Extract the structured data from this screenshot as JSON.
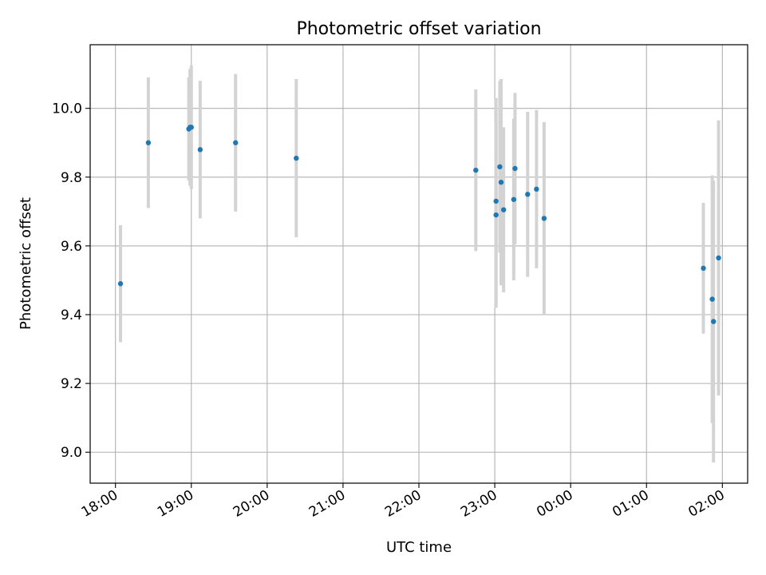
{
  "chart_data": {
    "type": "scatter",
    "title": "Photometric offset variation",
    "xlabel": "UTC time",
    "ylabel": "Photometric offset",
    "x_ticks": [
      "18:00",
      "19:00",
      "20:00",
      "21:00",
      "22:00",
      "23:00",
      "00:00",
      "01:00",
      "02:00"
    ],
    "y_ticks": [
      "9.0",
      "9.2",
      "9.4",
      "9.6",
      "9.8",
      "10.0"
    ],
    "xlim": [
      "17:40",
      "02:20"
    ],
    "ylim": [
      8.91,
      10.185
    ],
    "grid": true,
    "colors": {
      "point": "#1f77b4",
      "errorbar": "#d3d3d3",
      "grid": "#b0b0b0"
    },
    "points": [
      {
        "x": "18:04",
        "y": 9.49,
        "err": 0.17
      },
      {
        "x": "18:26",
        "y": 9.9,
        "err": 0.19
      },
      {
        "x": "18:58",
        "y": 9.94,
        "err": 0.15
      },
      {
        "x": "18:59",
        "y": 9.945,
        "err": 0.17
      },
      {
        "x": "19:00",
        "y": 9.945,
        "err": 0.18
      },
      {
        "x": "19:07",
        "y": 9.88,
        "err": 0.2
      },
      {
        "x": "19:35",
        "y": 9.9,
        "err": 0.2
      },
      {
        "x": "20:23",
        "y": 9.855,
        "err": 0.23
      },
      {
        "x": "22:45",
        "y": 9.82,
        "err": 0.235
      },
      {
        "x": "23:01",
        "y": 9.73,
        "err": 0.3
      },
      {
        "x": "23:01",
        "y": 9.69,
        "err": 0.27
      },
      {
        "x": "23:04",
        "y": 9.83,
        "err": 0.25
      },
      {
        "x": "23:05",
        "y": 9.785,
        "err": 0.3
      },
      {
        "x": "23:07",
        "y": 9.705,
        "err": 0.24
      },
      {
        "x": "23:15",
        "y": 9.735,
        "err": 0.235
      },
      {
        "x": "23:16",
        "y": 9.825,
        "err": 0.22
      },
      {
        "x": "23:26",
        "y": 9.75,
        "err": 0.24
      },
      {
        "x": "23:33",
        "y": 9.765,
        "err": 0.23
      },
      {
        "x": "23:39",
        "y": 9.68,
        "err": 0.28
      },
      {
        "x": "01:45",
        "y": 9.535,
        "err": 0.19
      },
      {
        "x": "01:52",
        "y": 9.445,
        "err": 0.36
      },
      {
        "x": "01:53",
        "y": 9.38,
        "err": 0.41
      },
      {
        "x": "01:57",
        "y": 9.565,
        "err": 0.4
      }
    ]
  }
}
